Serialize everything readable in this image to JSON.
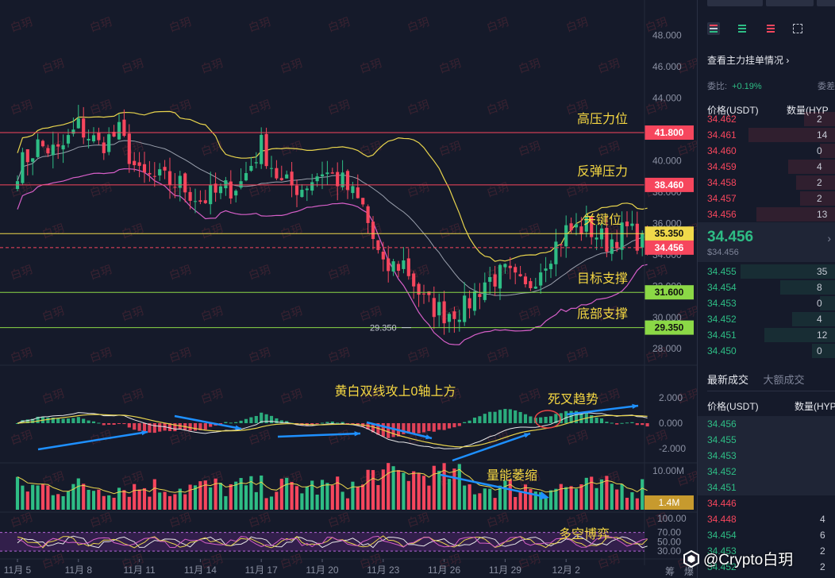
{
  "chart_data": {
    "type": "candlestick",
    "x_labels": [
      "11月 5",
      "11月 8",
      "11月 11",
      "11月 14",
      "11月 17",
      "11月 20",
      "11月 23",
      "11月 26",
      "11月 29",
      "12月 2"
    ],
    "bottom_right_labels": [
      "筹",
      "爆"
    ],
    "price_axis": {
      "ticks": [
        "48.000",
        "46.000",
        "44.000",
        "42.000",
        "40.000",
        "38.000",
        "36.000",
        "34.000",
        "32.000",
        "30.000",
        "28.000"
      ],
      "range": [
        27.2,
        49.0
      ]
    },
    "levels": [
      {
        "label": "高压力位",
        "price": 41.8,
        "tag": "41.800",
        "color": "#f6465d"
      },
      {
        "label": "反弹压力",
        "price": 38.46,
        "tag": "38.460",
        "color": "#f6465d"
      },
      {
        "label": "关键位",
        "price": 35.35,
        "tag": "35.350",
        "color": "#f0d94a"
      },
      {
        "label": "目标支撑",
        "price": 31.6,
        "tag": "31.600",
        "color": "#8bd846"
      },
      {
        "label": "底部支撑",
        "price": 29.35,
        "tag": "29.350",
        "color": "#8bd846"
      }
    ],
    "current_price": {
      "price": 34.456,
      "tag": "34.456",
      "color": "#f6465d"
    },
    "low_marker": {
      "price": 29.35,
      "label": "29.350"
    },
    "key_points": [
      {
        "day": 0,
        "price": 39.5
      },
      {
        "day": 1,
        "price": 41.0
      },
      {
        "day": 2,
        "price": 40.5
      },
      {
        "day": 3,
        "price": 42.2
      },
      {
        "day": 4,
        "price": 41.0
      },
      {
        "day": 5,
        "price": 41.8
      },
      {
        "day": 6,
        "price": 39.0
      },
      {
        "day": 7,
        "price": 38.8
      },
      {
        "day": 8,
        "price": 38.5
      },
      {
        "day": 9,
        "price": 37.5
      },
      {
        "day": 10,
        "price": 38.0
      },
      {
        "day": 11,
        "price": 38.6
      },
      {
        "day": 12,
        "price": 41.0
      },
      {
        "day": 13,
        "price": 38.5
      },
      {
        "day": 14,
        "price": 38.3
      },
      {
        "day": 15,
        "price": 39.4
      },
      {
        "day": 16,
        "price": 38.6
      },
      {
        "day": 17,
        "price": 37.0
      },
      {
        "day": 18,
        "price": 33.0
      },
      {
        "day": 19,
        "price": 33.5
      },
      {
        "day": 20,
        "price": 31.0
      },
      {
        "day": 21,
        "price": 30.3
      },
      {
        "day": 22,
        "price": 30.6
      },
      {
        "day": 23,
        "price": 32.3
      },
      {
        "day": 24,
        "price": 32.8
      },
      {
        "day": 25,
        "price": 31.7
      },
      {
        "day": 26,
        "price": 33.8
      },
      {
        "day": 27,
        "price": 35.5
      },
      {
        "day": 28,
        "price": 35.8
      },
      {
        "day": 29,
        "price": 34.8
      },
      {
        "day": 30,
        "price": 35.6
      },
      {
        "day": 31,
        "price": 34.456
      }
    ],
    "macd": {
      "ticks": [
        "2.000",
        "0.000",
        "-2.000"
      ],
      "range": [
        -2.8,
        2.8
      ],
      "annotation": "黄白双线攻上0轴上方",
      "cross_label": "死叉趋势"
    },
    "volume": {
      "ticks": [
        "10.00M"
      ],
      "tag": "1.4M",
      "annotation": "量能萎缩"
    },
    "rsi": {
      "ticks": [
        "100.00",
        "70.00",
        "50.00",
        "30.00"
      ],
      "range": [
        20,
        105
      ],
      "annotation": "多空博弈"
    },
    "watermark_text": "白玥",
    "colors": {
      "up": "#2ebd85",
      "down": "#f6465d",
      "boll_upper": "#e8d44d",
      "boll_lower": "#d65fc8",
      "boll_mid": "#9aa0ad",
      "annotation": "#f5d742",
      "arrow": "#1e90ff"
    }
  },
  "panel": {
    "link": "查看主力挂单情况",
    "ratio_label": "委比:",
    "ratio_value": "+0.19%",
    "ratio2_label": "委差",
    "header_price": "价格(USDT)",
    "header_qty": "数量(HYP",
    "asks": [
      {
        "price": "34.462",
        "qty": "2"
      },
      {
        "price": "34.461",
        "qty": "14"
      },
      {
        "price": "34.460",
        "qty": "0"
      },
      {
        "price": "34.459",
        "qty": "4"
      },
      {
        "price": "34.458",
        "qty": "2"
      },
      {
        "price": "34.457",
        "qty": "2"
      },
      {
        "price": "34.456",
        "qty": "13"
      }
    ],
    "mid_price": "34.456",
    "mid_sub": "$34.456",
    "mid_arrow": "›",
    "bids": [
      {
        "price": "34.455",
        "qty": "35"
      },
      {
        "price": "34.454",
        "qty": "8"
      },
      {
        "price": "34.453",
        "qty": "0"
      },
      {
        "price": "34.452",
        "qty": "4"
      },
      {
        "price": "34.451",
        "qty": "12"
      },
      {
        "price": "34.450",
        "qty": "0"
      }
    ],
    "tab_latest": "最新成交",
    "tab_large": "大额成交",
    "trade_header_price": "价格(USDT)",
    "trade_header_qty": "数量(HYP",
    "trades": [
      {
        "price": "34.456",
        "qty": "",
        "side": "up"
      },
      {
        "price": "34.455",
        "qty": "",
        "side": "up"
      },
      {
        "price": "34.453",
        "qty": "",
        "side": "up"
      },
      {
        "price": "34.452",
        "qty": "",
        "side": "up"
      },
      {
        "price": "34.451",
        "qty": "",
        "side": "up"
      },
      {
        "price": "34.446",
        "qty": "",
        "side": "dn"
      },
      {
        "price": "34.448",
        "qty": "4",
        "side": "dn"
      },
      {
        "price": "34.454",
        "qty": "6",
        "side": "up"
      },
      {
        "price": "34.453",
        "qty": "2",
        "side": "up"
      },
      {
        "price": "34.452",
        "qty": "2",
        "side": "up"
      }
    ],
    "watermark": "@Crypto白玥"
  }
}
